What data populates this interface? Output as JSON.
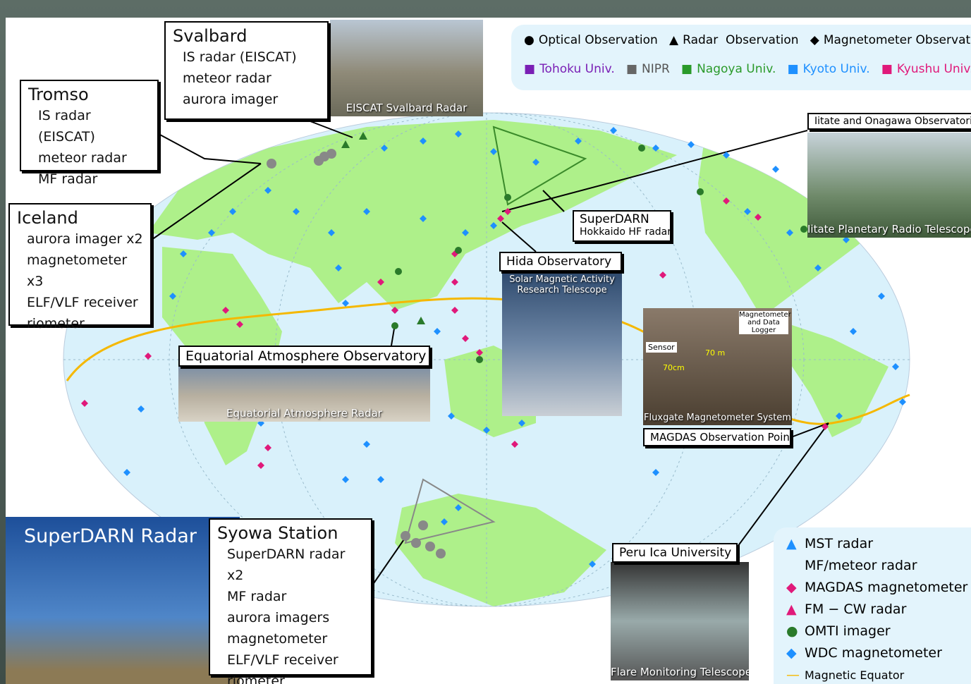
{
  "top_legend": {
    "observation_types": [
      "Optical Observation",
      "Radar  Observation",
      "Magnetometer Observation"
    ],
    "institutions": [
      "Tohoku Univ.",
      "NIPR",
      "Nagoya Univ.",
      "Kyoto Univ.",
      "Kyushu Univ."
    ]
  },
  "sites": {
    "tromso": {
      "title": "Tromso",
      "items": [
        "IS radar (EISCAT)",
        "meteor radar",
        "MF radar"
      ]
    },
    "svalbard": {
      "title": "Svalbard",
      "items": [
        "IS radar (EISCAT)",
        "meteor radar",
        "aurora imager"
      ]
    },
    "iceland": {
      "title": "Iceland",
      "items": [
        "aurora imager x2",
        "magnetometer x3",
        "ELF/VLF receiver",
        "riometer"
      ]
    },
    "syowa": {
      "title": "Syowa Station",
      "items": [
        "SuperDARN radar x2",
        "MF radar",
        "aurora imagers",
        "magnetometer",
        "ELF/VLF receiver",
        "riometer"
      ]
    },
    "superdarn_hokkaido": {
      "title": "SuperDARN",
      "subtitle": "Hokkaido HF radar"
    },
    "iitate": {
      "title": "Iitate and Onagawa Observatories",
      "photo_caption": "Iitate Planetary Radio Telescope"
    },
    "hida": {
      "title": "Hida Observatory",
      "photo_caption": "Solar Magnetic Activity Research Telescope"
    },
    "equatorial": {
      "title": "Equatorial Atmosphere Observatory",
      "photo_caption": "Equatorial Atmosphere Radar"
    },
    "magdas": {
      "title": "MAGDAS Observation Point",
      "photo_caption": "Fluxgate Magnetometer System",
      "photo_labels": [
        "Sensor",
        "70cm",
        "70 m",
        "Magnetometer and Data Logger"
      ]
    },
    "peru": {
      "title": "Peru Ica University",
      "photo_caption": "Flare Monitoring Telescope"
    },
    "eiscat_photo": "EISCAT Svalbard Radar",
    "superdarn_photo": "SuperDARN Radar"
  },
  "bottom_legend": [
    "MST radar",
    "MF/meteor radar",
    "MAGDAS magnetometer",
    "FM − CW radar",
    "OMTI imager",
    "WDC magnetometer",
    "Magnetic Equator"
  ]
}
